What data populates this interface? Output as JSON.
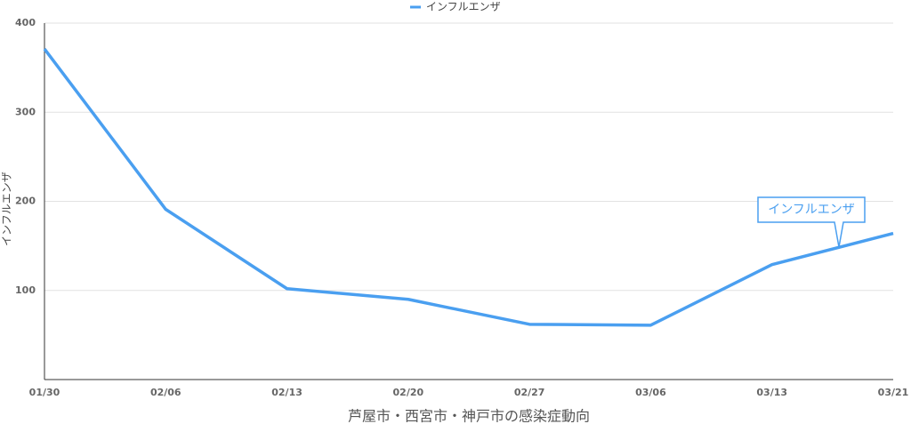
{
  "chart_data": {
    "type": "line",
    "x_axis_label": "芦屋市・西宮市・神戸市の感染症動向",
    "categories": [
      "01/30",
      "02/06",
      "02/13",
      "02/20",
      "02/27",
      "03/06",
      "03/13",
      "03/21"
    ],
    "series": [
      {
        "name": "インフルエンザ",
        "color": "#4a9ff0",
        "values": [
          371,
          191,
          102,
          90,
          62,
          61,
          129,
          164
        ]
      }
    ],
    "ylim": [
      0,
      400
    ],
    "yticks": [
      100,
      200,
      300,
      400
    ],
    "grid": true,
    "legend": "top"
  }
}
